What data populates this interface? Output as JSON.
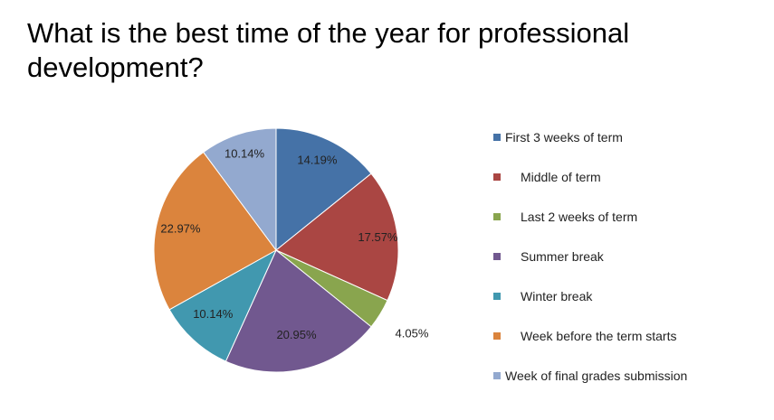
{
  "chart_data": {
    "type": "pie",
    "title": "What is the best time of the year for professional development?",
    "slices": [
      {
        "label": "First 3 weeks of term",
        "value": 14.19,
        "value_label": "14.19%",
        "color": "#4572A7"
      },
      {
        "label": "Middle of term",
        "value": 17.57,
        "value_label": "17.57%",
        "color": "#AA4643"
      },
      {
        "label": "Last 2 weeks of term",
        "value": 4.05,
        "value_label": "4.05%",
        "color": "#89A54E"
      },
      {
        "label": "Summer break",
        "value": 20.95,
        "value_label": "20.95%",
        "color": "#71588F"
      },
      {
        "label": "Winter break",
        "value": 10.14,
        "value_label": "10.14%",
        "color": "#4198AF"
      },
      {
        "label": "Week before the term starts",
        "value": 22.97,
        "value_label": "22.97%",
        "color": "#DB843D"
      },
      {
        "label": "Week of final grades submission",
        "value": 10.14,
        "value_label": "10.14%",
        "color": "#93A9CF"
      }
    ],
    "legend_position": "right"
  }
}
